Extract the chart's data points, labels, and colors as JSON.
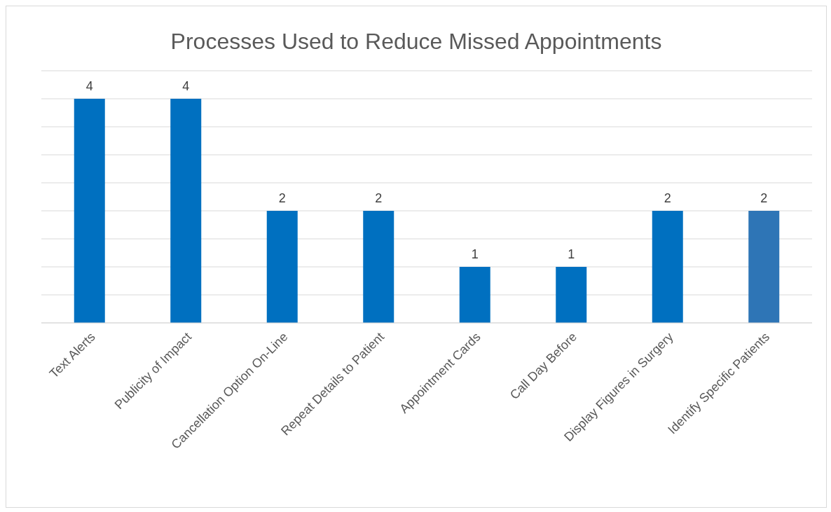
{
  "chart_data": {
    "type": "bar",
    "title": "Processes Used to Reduce Missed Appointments",
    "categories": [
      "Text Alerts",
      "Publicity of Impact",
      "Cancellation Option On-Line",
      "Repeat Details to Patient",
      "Appointment Cards",
      "Call Day Before",
      "Display Figures in Surgery",
      "Identify Specific Patients"
    ],
    "values": [
      4,
      4,
      2,
      2,
      1,
      1,
      2,
      2
    ],
    "colors": [
      "#0070c0",
      "#0070c0",
      "#0070c0",
      "#0070c0",
      "#0070c0",
      "#0070c0",
      "#0070c0",
      "#2e75b6"
    ],
    "ylim": [
      0,
      4.5
    ],
    "yticks": [
      {
        "value": 0,
        "label": null
      },
      {
        "value": 0.5,
        "label": null
      },
      {
        "value": 1,
        "label": null
      },
      {
        "value": 1.5,
        "label": null
      },
      {
        "value": 2,
        "label": null
      },
      {
        "value": 2.5,
        "label": null
      },
      {
        "value": 3,
        "label": null
      },
      {
        "value": 3.5,
        "label": null
      },
      {
        "value": 4,
        "label": null
      },
      {
        "value": 4.5,
        "label": null
      }
    ],
    "grid": "y",
    "tick_labels": "x",
    "data_labels": true
  }
}
